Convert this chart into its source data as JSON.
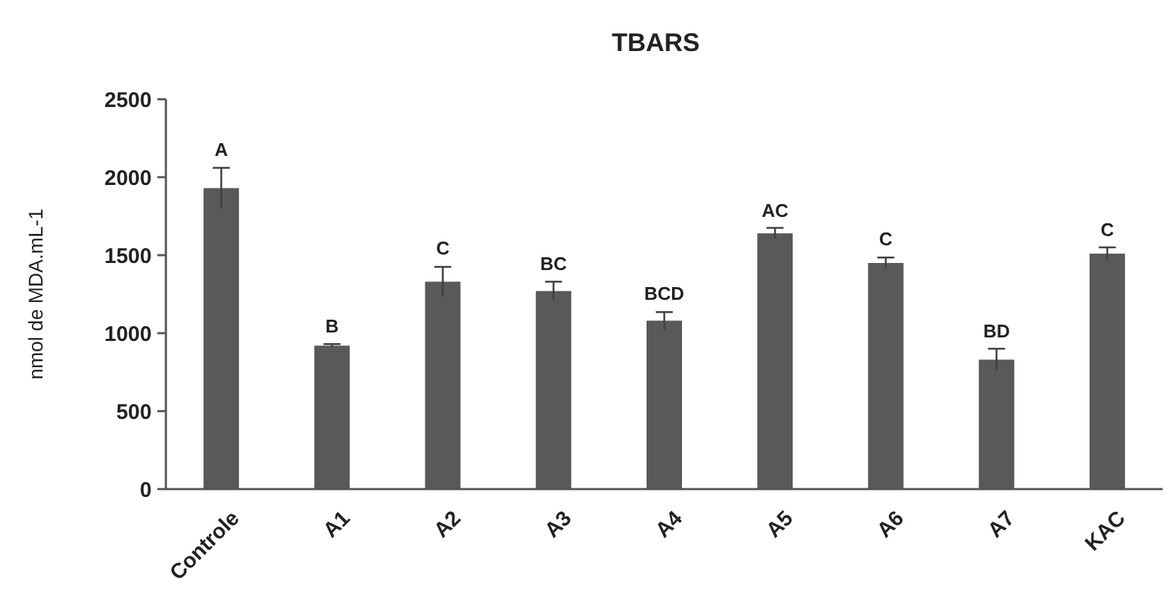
{
  "chart_data": {
    "type": "bar",
    "title": "TBARS",
    "ylabel": "nmol de MDA.mL-1",
    "categories": [
      "Controle",
      "A1",
      "A2",
      "A3",
      "A4",
      "A5",
      "A6",
      "A7",
      "KAC"
    ],
    "values": [
      1930,
      920,
      1330,
      1270,
      1080,
      1640,
      1450,
      830,
      1510
    ],
    "errors": [
      130,
      10,
      95,
      60,
      55,
      35,
      35,
      70,
      40
    ],
    "color": "#595959",
    "ylim": [
      0,
      2500
    ],
    "yticks": [
      0,
      500,
      1000,
      1500,
      2000,
      2500
    ],
    "grid": false,
    "annotations": [
      {
        "text": "A",
        "x": "Controle",
        "y": 2065
      },
      {
        "text": "B",
        "x": "A1",
        "y": 930
      },
      {
        "text": "C",
        "x": "A2",
        "y": 1430
      },
      {
        "text": "BC",
        "x": "A3",
        "y": 1330
      },
      {
        "text": "BCD",
        "x": "A4",
        "y": 1140
      },
      {
        "text": "AC",
        "x": "A5",
        "y": 1675
      },
      {
        "text": "C",
        "x": "A6",
        "y": 1490
      },
      {
        "text": "BD",
        "x": "A7",
        "y": 900
      },
      {
        "text": "C",
        "x": "KAC",
        "y": 1550
      }
    ]
  }
}
